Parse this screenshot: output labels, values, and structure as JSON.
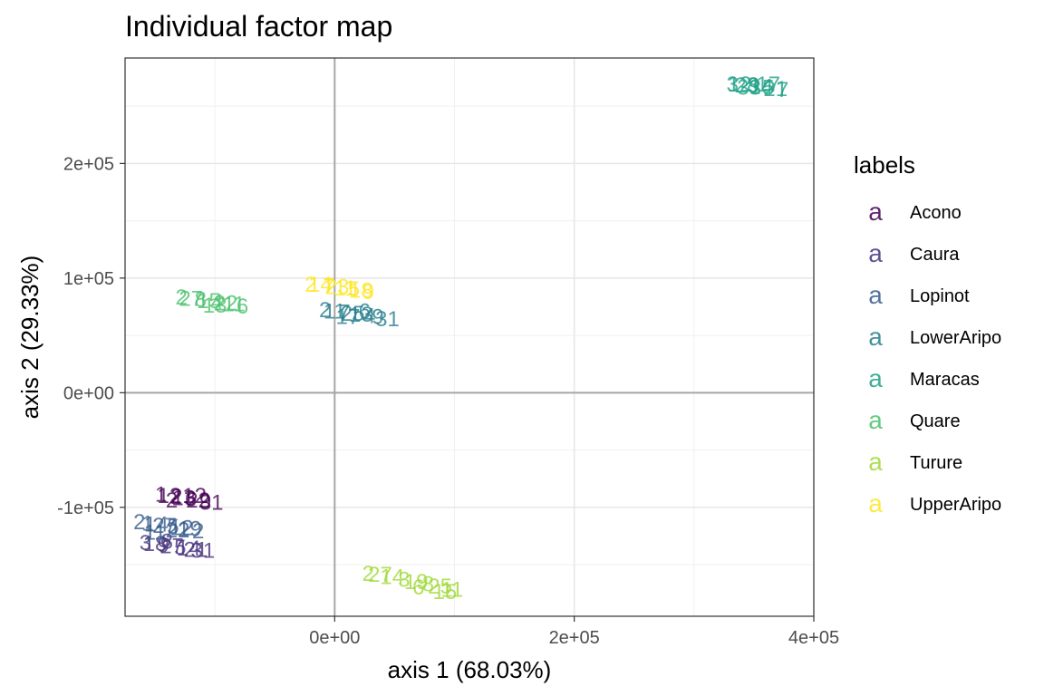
{
  "chart_data": {
    "type": "scatter",
    "title": "Individual factor map",
    "xlabel": "axis 1 (68.03%)",
    "ylabel": "axis 2 (29.33%)",
    "xlim": [
      -175000,
      400000
    ],
    "ylim": [
      -195000,
      292000
    ],
    "xticks": [
      0,
      200000,
      400000
    ],
    "xtick_labels": [
      "0e+00",
      "2e+05",
      "4e+05"
    ],
    "yticks": [
      -100000,
      0,
      100000,
      200000
    ],
    "ytick_labels": [
      "-1e+05",
      "0e+00",
      "1e+05",
      "2e+05"
    ],
    "grid": true,
    "reference_lines": [
      0,
      0
    ],
    "legend": {
      "title": "labels",
      "position": "right",
      "key_glyph": "a"
    },
    "series": [
      {
        "name": "Acono",
        "color": "#440154",
        "labels": [
          "1",
          "12",
          "2",
          "13",
          "6",
          "22",
          "9",
          "31",
          "2",
          "12"
        ],
        "x": [
          -145000,
          -138000,
          -132000,
          -126000,
          -120000,
          -114000,
          -108000,
          -103000,
          -136000,
          -117000
        ],
        "y": [
          -88000,
          -89000,
          -90000,
          -91000,
          -92000,
          -93000,
          -94000,
          -95000,
          -93000,
          -89000
        ]
      },
      {
        "name": "Caura",
        "color": "#46337E",
        "labels": [
          "3",
          "18",
          "9",
          "27",
          "5",
          "14",
          "21",
          "31",
          "8"
        ],
        "x": [
          -158000,
          -150000,
          -143000,
          -136000,
          -129000,
          -122000,
          -116000,
          -110000,
          -140000
        ],
        "y": [
          -130000,
          -131000,
          -132000,
          -133000,
          -134000,
          -135000,
          -136000,
          -137000,
          -129000
        ]
      },
      {
        "name": "Lopinot",
        "color": "#365C8D",
        "labels": [
          "2",
          "1",
          "14",
          "27",
          "5",
          "12",
          "19",
          "2",
          "11",
          "22"
        ],
        "x": [
          -163000,
          -156000,
          -149000,
          -142000,
          -135000,
          -128000,
          -121000,
          -114000,
          -150000,
          -131000
        ],
        "y": [
          -112000,
          -113000,
          -114000,
          -115000,
          -116000,
          -117000,
          -118000,
          -120000,
          -121000,
          -119000
        ]
      },
      {
        "name": "LowerAripo",
        "color": "#277F8E",
        "labels": [
          "2",
          "11",
          "7",
          "25",
          "13",
          "4",
          "9",
          "31",
          "17",
          "6"
        ],
        "x": [
          -8000,
          0,
          8000,
          15000,
          22000,
          29000,
          36000,
          44000,
          11000,
          25000
        ],
        "y": [
          73000,
          72000,
          71000,
          70000,
          69000,
          68000,
          67000,
          65000,
          67000,
          72000
        ]
      },
      {
        "name": "Maracas",
        "color": "#1FA187",
        "labels": [
          "3",
          "12",
          "28",
          "9",
          "14",
          "5",
          "21",
          "7",
          "33",
          "17"
        ],
        "x": [
          332000,
          338000,
          344000,
          350000,
          356000,
          362000,
          368000,
          374000,
          346000,
          362000
        ],
        "y": [
          270000,
          270000,
          269000,
          269000,
          268000,
          267000,
          266000,
          265000,
          267000,
          270000
        ]
      },
      {
        "name": "Quare",
        "color": "#4AC16D",
        "labels": [
          "2",
          "27",
          "8",
          "15",
          "4",
          "22",
          "11",
          "6",
          "13"
        ],
        "x": [
          -128000,
          -120000,
          -112000,
          -105000,
          -98000,
          -91000,
          -84000,
          -77000,
          -100000
        ],
        "y": [
          84000,
          83000,
          82000,
          81000,
          80000,
          79000,
          78000,
          76000,
          77000
        ]
      },
      {
        "name": "Turure",
        "color": "#A0DA39",
        "labels": [
          "2",
          "27",
          "14",
          "3",
          "19",
          "8",
          "25",
          "11",
          "6",
          "15"
        ],
        "x": [
          28000,
          38000,
          48000,
          58000,
          68000,
          78000,
          88000,
          98000,
          70000,
          92000
        ],
        "y": [
          -157000,
          -158000,
          -160000,
          -162000,
          -164000,
          -166000,
          -168000,
          -171000,
          -169000,
          -173000
        ]
      },
      {
        "name": "UpperAripo",
        "color": "#FDE725",
        "labels": [
          "2",
          "14",
          "7",
          "23",
          "11",
          "5",
          "18",
          "9"
        ],
        "x": [
          -20000,
          -12000,
          -5000,
          2000,
          9000,
          16000,
          22000,
          28000
        ],
        "y": [
          95000,
          95000,
          94000,
          93000,
          92000,
          91000,
          90000,
          89000
        ]
      }
    ]
  }
}
